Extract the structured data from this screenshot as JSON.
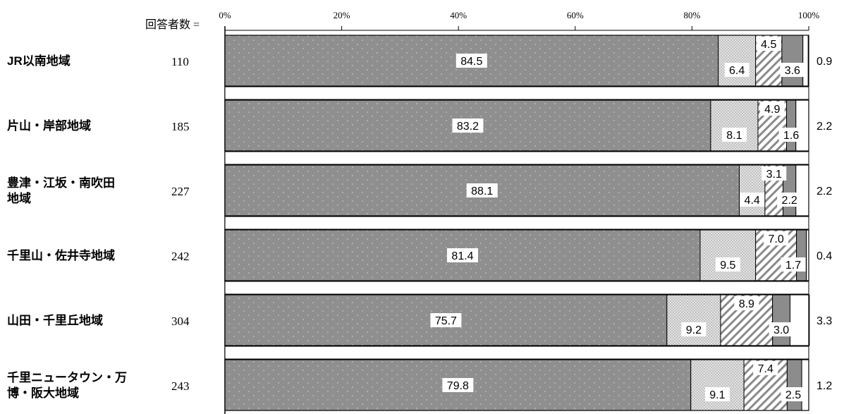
{
  "chart_data": {
    "type": "bar",
    "orientation": "horizontal",
    "stacked": true,
    "respondents_label": "回答者数 =",
    "x_ticks": [
      "0%",
      "20%",
      "40%",
      "60%",
      "80%",
      "100%"
    ],
    "xlim": [
      0,
      100
    ],
    "categories": [
      "JR以南地域",
      "片山・岸部地域",
      "豊津・江坂・南吹田地域",
      "千里山・佐井寺地域",
      "山田・千里丘地域",
      "千里ニュータウン・万博・阪大地域"
    ],
    "category_lines": [
      [
        "JR以南地域"
      ],
      [
        "片山・岸部地域"
      ],
      [
        "豊津・江坂・南吹田",
        "地域"
      ],
      [
        "千里山・佐井寺地域"
      ],
      [
        "山田・千里丘地域"
      ],
      [
        "千里ニュータウン・万",
        "博・阪大地域"
      ]
    ],
    "respondents": [
      "110",
      "185",
      "227",
      "242",
      "304",
      "243"
    ],
    "series": [
      {
        "values": [
          84.5,
          83.2,
          88.1,
          81.4,
          75.7,
          79.8
        ],
        "color": "#8f8f8f",
        "pattern": "raindrop"
      },
      {
        "values": [
          6.4,
          8.1,
          4.4,
          9.5,
          9.2,
          9.1
        ],
        "color": "#dcdcdc",
        "pattern": "dots"
      },
      {
        "values": [
          4.5,
          4.9,
          3.1,
          7.0,
          8.9,
          7.4
        ],
        "color": "#ffffff",
        "pattern": "diagonal"
      },
      {
        "values": [
          3.6,
          1.6,
          2.2,
          1.7,
          3.0,
          2.5
        ],
        "color": "#8c8c8c",
        "pattern": "solid"
      },
      {
        "values": [
          0.9,
          2.2,
          2.2,
          0.4,
          3.3,
          1.2
        ],
        "color": "#ffffff",
        "pattern": "none"
      }
    ],
    "data_labels": [
      [
        "84.5",
        "6.4",
        "4.5",
        "3.6",
        "0.9"
      ],
      [
        "83.2",
        "8.1",
        "4.9",
        "1.6",
        "2.2"
      ],
      [
        "88.1",
        "4.4",
        "3.1",
        "2.2",
        "2.2"
      ],
      [
        "81.4",
        "9.5",
        "7.0",
        "1.7",
        "0.4"
      ],
      [
        "75.7",
        "9.2",
        "8.9",
        "3.0",
        "3.3"
      ],
      [
        "79.8",
        "9.1",
        "7.4",
        "2.5",
        "1.2"
      ]
    ],
    "grid": false,
    "legend": "none"
  }
}
